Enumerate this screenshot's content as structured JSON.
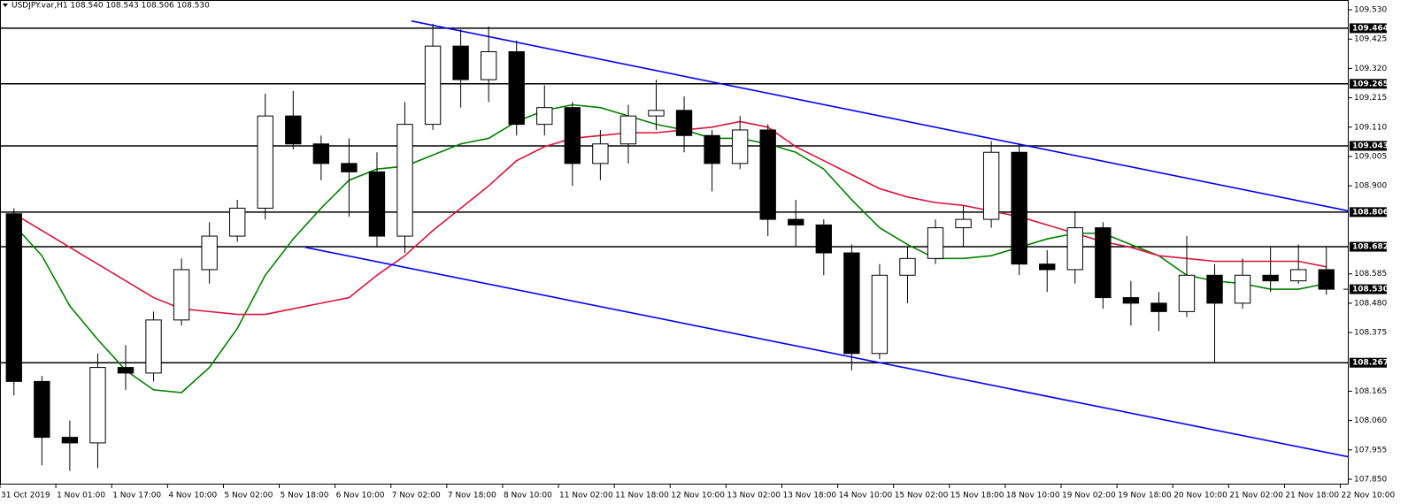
{
  "chart_data": {
    "type": "candlestick",
    "title": "USDJPY.var,H1  108.540 108.543 108.506 108.530",
    "xlim": [
      0,
      48.3
    ],
    "ylim": [
      107.831,
      109.565
    ],
    "xticks": [
      {
        "value": 0,
        "label": "31 Oct 2019"
      },
      {
        "value": 2,
        "label": "1 Nov 01:00"
      },
      {
        "value": 4,
        "label": "1 Nov 17:00"
      },
      {
        "value": 6,
        "label": "4 Nov 10:00"
      },
      {
        "value": 8,
        "label": "5 Nov 02:00"
      },
      {
        "value": 10,
        "label": "5 Nov 18:00"
      },
      {
        "value": 12,
        "label": "6 Nov 10:00"
      },
      {
        "value": 14,
        "label": "7 Nov 02:00"
      },
      {
        "value": 16,
        "label": "7 Nov 18:00"
      },
      {
        "value": 18,
        "label": "8 Nov 10:00"
      },
      {
        "value": 20,
        "label": "11 Nov 02:00"
      },
      {
        "value": 22,
        "label": "11 Nov 18:00"
      },
      {
        "value": 24,
        "label": "12 Nov 10:00"
      },
      {
        "value": 26,
        "label": "13 Nov 02:00"
      },
      {
        "value": 28,
        "label": "13 Nov 18:00"
      },
      {
        "value": 30,
        "label": "14 Nov 10:00"
      },
      {
        "value": 32,
        "label": "15 Nov 02:00"
      },
      {
        "value": 34,
        "label": "15 Nov 18:00"
      },
      {
        "value": 36,
        "label": "18 Nov 10:00"
      },
      {
        "value": 38,
        "label": "19 Nov 02:00"
      },
      {
        "value": 40,
        "label": "19 Nov 18:00"
      },
      {
        "value": 42,
        "label": "20 Nov 10:00"
      },
      {
        "value": 44,
        "label": "21 Nov 02:00"
      },
      {
        "value": 46,
        "label": "21 Nov 18:00"
      },
      {
        "value": 48,
        "label": "22 Nov 10:00"
      }
    ],
    "yticks": [
      {
        "value": 109.53,
        "label": "109.530"
      },
      {
        "value": 109.425,
        "label": "109.425"
      },
      {
        "value": 109.32,
        "label": "109.320"
      },
      {
        "value": 109.215,
        "label": "109.215"
      },
      {
        "value": 109.11,
        "label": "109.110"
      },
      {
        "value": 109.005,
        "label": "109.005"
      },
      {
        "value": 108.9,
        "label": "108.900"
      },
      {
        "value": 108.585,
        "label": "108.585"
      },
      {
        "value": 108.48,
        "label": "108.480"
      },
      {
        "value": 108.375,
        "label": "108.375"
      },
      {
        "value": 108.165,
        "label": "108.165"
      },
      {
        "value": 108.06,
        "label": "108.060"
      },
      {
        "value": 107.955,
        "label": "107.955"
      },
      {
        "value": 107.85,
        "label": "107.850"
      }
    ],
    "open": [
      108.8,
      108.2,
      108.0,
      107.98,
      108.25,
      108.23,
      108.42,
      108.6,
      108.72,
      108.82,
      109.15,
      109.05,
      108.98,
      108.95,
      108.72,
      109.12,
      109.4,
      109.28,
      109.38,
      109.12,
      109.18,
      108.98,
      109.05,
      109.15,
      109.17,
      109.08,
      108.98,
      109.1,
      108.78,
      108.76,
      108.66,
      108.3,
      108.58,
      108.64,
      108.75,
      108.78,
      109.02,
      108.62,
      108.6,
      108.75,
      108.5,
      108.48,
      108.45,
      108.58,
      108.48,
      108.58,
      108.56,
      108.6
    ],
    "high": [
      108.82,
      108.22,
      108.06,
      108.3,
      108.33,
      108.45,
      108.64,
      108.77,
      108.85,
      109.23,
      109.24,
      109.08,
      109.07,
      109.02,
      109.2,
      109.48,
      109.46,
      109.47,
      109.42,
      109.26,
      109.2,
      109.1,
      109.19,
      109.28,
      109.22,
      109.1,
      109.15,
      109.12,
      108.85,
      108.78,
      108.69,
      108.62,
      108.68,
      108.78,
      108.83,
      109.06,
      109.05,
      108.67,
      108.81,
      108.77,
      108.56,
      108.52,
      108.72,
      108.62,
      108.64,
      108.68,
      108.69,
      108.68
    ],
    "low": [
      108.15,
      107.9,
      107.88,
      107.89,
      108.17,
      108.2,
      108.4,
      108.55,
      108.7,
      108.78,
      109.03,
      108.92,
      108.79,
      108.68,
      108.66,
      109.1,
      109.18,
      109.2,
      109.08,
      109.08,
      108.9,
      108.92,
      108.98,
      109.1,
      109.02,
      108.88,
      108.96,
      108.72,
      108.68,
      108.58,
      108.24,
      108.28,
      108.48,
      108.62,
      108.68,
      108.75,
      108.58,
      108.52,
      108.55,
      108.46,
      108.4,
      108.38,
      108.43,
      108.27,
      108.46,
      108.52,
      108.55,
      108.51
    ],
    "close": [
      108.2,
      108.0,
      107.98,
      108.25,
      108.23,
      108.42,
      108.6,
      108.72,
      108.82,
      109.15,
      109.05,
      108.98,
      108.95,
      108.72,
      109.12,
      109.4,
      109.28,
      109.38,
      109.12,
      109.18,
      108.98,
      109.05,
      109.15,
      109.17,
      109.08,
      108.98,
      109.1,
      108.78,
      108.76,
      108.66,
      108.3,
      108.58,
      108.64,
      108.75,
      108.78,
      109.02,
      108.62,
      108.6,
      108.75,
      108.5,
      108.48,
      108.45,
      108.58,
      108.48,
      108.58,
      108.56,
      108.6,
      108.53
    ],
    "lines": [
      {
        "color": "#008000",
        "values": [
          108.76,
          108.65,
          108.47,
          108.35,
          108.24,
          108.17,
          108.16,
          108.25,
          108.39,
          108.58,
          108.71,
          108.82,
          108.92,
          108.96,
          108.97,
          109.01,
          109.05,
          109.07,
          109.13,
          109.17,
          109.19,
          109.18,
          109.15,
          109.12,
          109.1,
          109.07,
          109.07,
          109.05,
          109.02,
          108.96,
          108.85,
          108.75,
          108.69,
          108.64,
          108.64,
          108.65,
          108.68,
          108.71,
          108.73,
          108.73,
          108.69,
          108.65,
          108.58,
          108.56,
          108.55,
          108.53,
          108.53,
          108.55
        ]
      },
      {
        "color": "#dc143c",
        "values": [
          108.8,
          108.74,
          108.68,
          108.62,
          108.56,
          108.5,
          108.46,
          108.45,
          108.44,
          108.44,
          108.46,
          108.48,
          108.5,
          108.58,
          108.65,
          108.74,
          108.82,
          108.9,
          108.99,
          109.04,
          109.07,
          109.08,
          109.09,
          109.09,
          109.1,
          109.11,
          109.13,
          109.11,
          109.04,
          108.99,
          108.94,
          108.89,
          108.86,
          108.84,
          108.83,
          108.81,
          108.79,
          108.76,
          108.73,
          108.7,
          108.68,
          108.65,
          108.64,
          108.63,
          108.63,
          108.63,
          108.63,
          108.61
        ]
      }
    ],
    "trendlines": [
      {
        "color": "#0000ff",
        "x": [
          14.73,
          48.3
        ],
        "y": [
          109.49,
          108.81
        ]
      },
      {
        "color": "#0000ff",
        "x": [
          10.93,
          48.3
        ],
        "y": [
          108.68,
          107.93
        ]
      }
    ],
    "levels": [
      109.464,
      109.265,
      109.043,
      108.806,
      108.682,
      108.267
    ],
    "last_price": {
      "value": 108.53,
      "label": "108.530"
    }
  }
}
